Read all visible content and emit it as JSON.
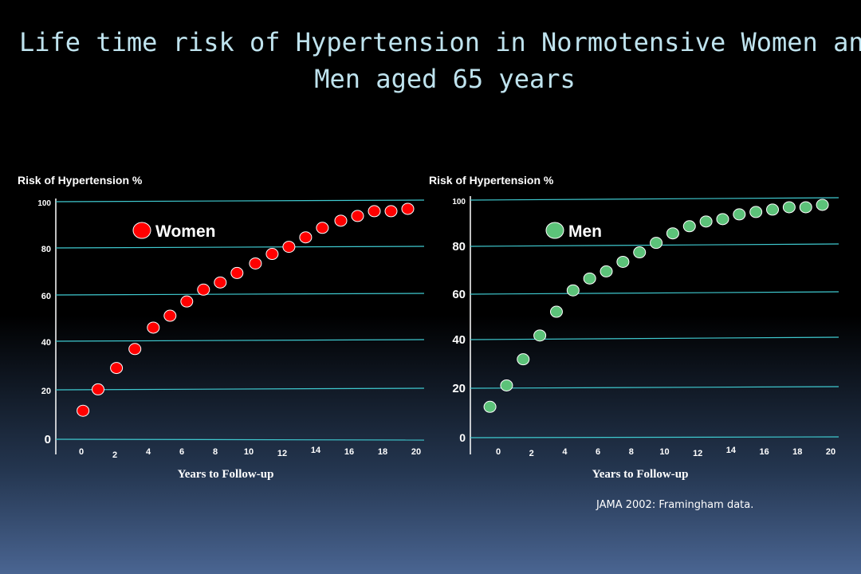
{
  "slide": {
    "title_line1": "Life time risk of Hypertension in Normotensive Women and",
    "title_line2": "Men aged 65 years",
    "source": "JAMA 2002: Framingham data."
  },
  "chart_data": [
    {
      "type": "scatter",
      "legend": "Women",
      "ylabel": "Risk of Hypertension %",
      "xlabel": "Years to Follow-up",
      "yticks": [
        "0",
        "20",
        "40",
        "60",
        "80",
        "100"
      ],
      "xticks": [
        "0",
        "2",
        "4",
        "6",
        "8",
        "10",
        "12",
        "14",
        "16",
        "18",
        "20"
      ],
      "ylim": [
        0,
        100
      ],
      "xlim": [
        0,
        20
      ],
      "grid": true,
      "marker_color": "#ff0000",
      "x": [
        0.1,
        1.0,
        2.1,
        3.2,
        4.3,
        5.3,
        6.3,
        7.3,
        8.3,
        9.3,
        10.4,
        11.4,
        12.4,
        13.4,
        14.4,
        15.5,
        16.5,
        17.5,
        18.5,
        19.5
      ],
      "y": [
        12,
        21,
        30,
        38,
        47,
        52,
        58,
        63,
        66,
        70,
        74,
        78,
        81,
        85,
        89,
        92,
        94,
        96,
        96,
        97
      ]
    },
    {
      "type": "scatter",
      "legend": "Men",
      "ylabel": "Risk of Hypertension %",
      "xlabel": "Years to Follow-up",
      "yticks": [
        "0",
        "20",
        "40",
        "60",
        "80",
        "100"
      ],
      "xticks": [
        "0",
        "2",
        "4",
        "6",
        "8",
        "10",
        "12",
        "14",
        "16",
        "18",
        "20"
      ],
      "ylim": [
        0,
        100
      ],
      "xlim": [
        0,
        20
      ],
      "grid": true,
      "marker_color": "#5cc279",
      "x": [
        -0.5,
        0.5,
        1.5,
        2.5,
        3.5,
        4.5,
        5.5,
        6.5,
        7.5,
        8.5,
        9.5,
        10.5,
        11.5,
        12.5,
        13.5,
        14.5,
        15.5,
        16.5,
        17.5,
        18.5,
        19.5
      ],
      "y": [
        13,
        22,
        33,
        43,
        53,
        62,
        67,
        70,
        74,
        78,
        82,
        86,
        89,
        91,
        92,
        94,
        95,
        96,
        97,
        97,
        98
      ]
    }
  ]
}
